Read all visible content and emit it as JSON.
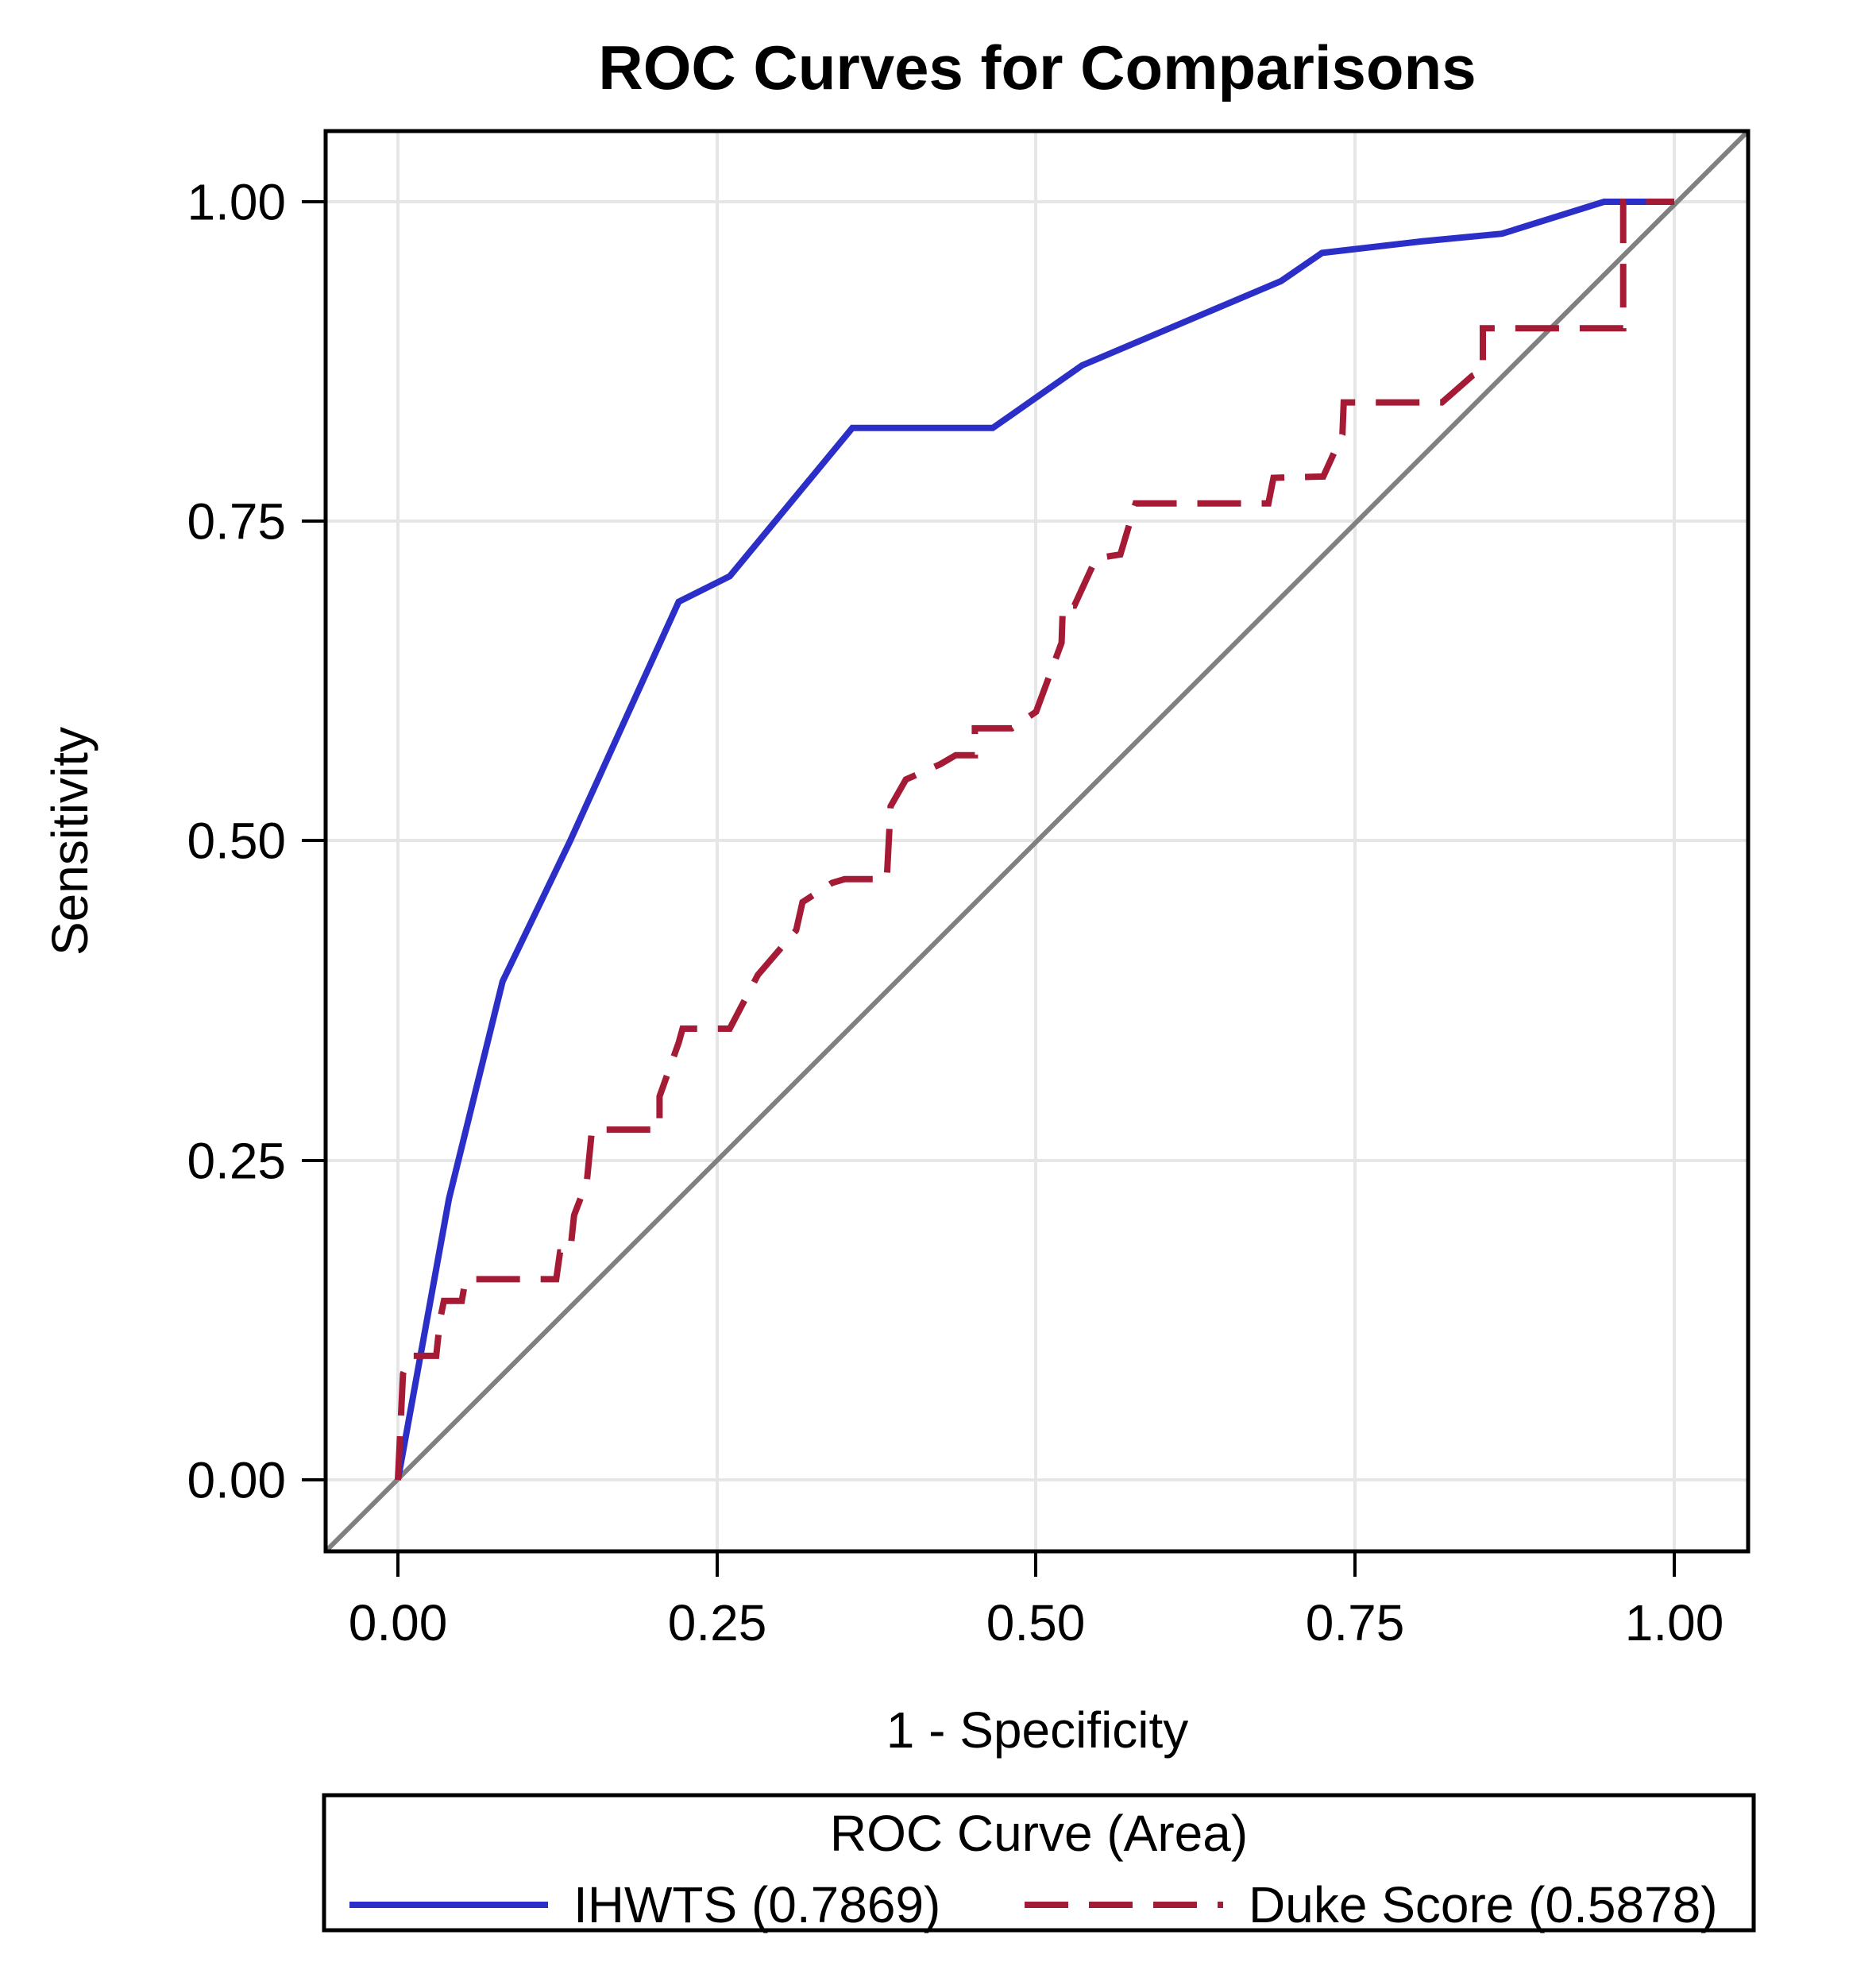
{
  "title": "ROC Curves for Comparisons",
  "axes": {
    "x_label": "1 - Specificity",
    "y_label": "Sensitivity",
    "x_ticks": [
      "0.00",
      "0.25",
      "0.50",
      "0.75",
      "1.00"
    ],
    "y_ticks": [
      "1.00",
      "0.75",
      "0.50",
      "0.25",
      "0.00"
    ]
  },
  "legend": {
    "title": "ROC Curve (Area)",
    "items": [
      {
        "label": "IHWTS  (0.7869)"
      },
      {
        "label": "Duke Score  (0.5878)"
      }
    ]
  },
  "colors": {
    "ihwts_line": "#2B2FC8",
    "duke_line": "#A51B35",
    "reference_line": "#808080",
    "gridline": "#E6E6E6",
    "frame": "#000000"
  },
  "chart_data": {
    "type": "line",
    "title": "ROC Curves for Comparisons",
    "xlabel": "1 - Specificity",
    "ylabel": "Sensitivity",
    "xlim": [
      0,
      1
    ],
    "ylim": [
      0,
      1
    ],
    "x_ticks": [
      0.0,
      0.25,
      0.5,
      0.75,
      1.0
    ],
    "y_ticks": [
      0.0,
      0.25,
      0.5,
      0.75,
      1.0
    ],
    "grid": true,
    "legend_position": "bottom",
    "legend_title": "ROC Curve (Area)",
    "reference_line": {
      "type": "diagonal",
      "from": [
        0,
        0
      ],
      "to": [
        1,
        1
      ],
      "color": "#808080",
      "style": "solid"
    },
    "series": [
      {
        "name": "IHWTS",
        "area": 0.7869,
        "color": "#2B2FC8",
        "style": "solid",
        "points": [
          [
            0.0,
            0.0
          ],
          [
            0.04,
            0.22
          ],
          [
            0.082,
            0.39
          ],
          [
            0.135,
            0.5
          ],
          [
            0.22,
            0.687
          ],
          [
            0.26,
            0.707
          ],
          [
            0.356,
            0.823
          ],
          [
            0.466,
            0.823
          ],
          [
            0.536,
            0.872
          ],
          [
            0.692,
            0.938
          ],
          [
            0.724,
            0.96
          ],
          [
            0.802,
            0.969
          ],
          [
            0.865,
            0.975
          ],
          [
            0.945,
            1.0
          ],
          [
            1.0,
            1.0
          ]
        ]
      },
      {
        "name": "Duke Score",
        "area": 0.5878,
        "color": "#A51B35",
        "style": "dashed",
        "points": [
          [
            0.0,
            0.0
          ],
          [
            0.004,
            0.083
          ],
          [
            0.01,
            0.097
          ],
          [
            0.03,
            0.097
          ],
          [
            0.033,
            0.125
          ],
          [
            0.036,
            0.14
          ],
          [
            0.05,
            0.14
          ],
          [
            0.053,
            0.157
          ],
          [
            0.124,
            0.157
          ],
          [
            0.127,
            0.178
          ],
          [
            0.135,
            0.178
          ],
          [
            0.138,
            0.207
          ],
          [
            0.148,
            0.233
          ],
          [
            0.152,
            0.274
          ],
          [
            0.205,
            0.274
          ],
          [
            0.205,
            0.3
          ],
          [
            0.22,
            0.342
          ],
          [
            0.223,
            0.353
          ],
          [
            0.26,
            0.353
          ],
          [
            0.282,
            0.395
          ],
          [
            0.312,
            0.43
          ],
          [
            0.317,
            0.452
          ],
          [
            0.34,
            0.467
          ],
          [
            0.35,
            0.47
          ],
          [
            0.383,
            0.47
          ],
          [
            0.386,
            0.527
          ],
          [
            0.398,
            0.548
          ],
          [
            0.425,
            0.56
          ],
          [
            0.437,
            0.567
          ],
          [
            0.452,
            0.567
          ],
          [
            0.452,
            0.588
          ],
          [
            0.481,
            0.588
          ],
          [
            0.5,
            0.601
          ],
          [
            0.52,
            0.655
          ],
          [
            0.521,
            0.684
          ],
          [
            0.53,
            0.684
          ],
          [
            0.547,
            0.721
          ],
          [
            0.566,
            0.724
          ],
          [
            0.578,
            0.764
          ],
          [
            0.682,
            0.764
          ],
          [
            0.686,
            0.784
          ],
          [
            0.725,
            0.785
          ],
          [
            0.74,
            0.818
          ],
          [
            0.741,
            0.843
          ],
          [
            0.818,
            0.843
          ],
          [
            0.842,
            0.864
          ],
          [
            0.85,
            0.868
          ],
          [
            0.85,
            0.901
          ],
          [
            0.96,
            0.901
          ],
          [
            0.96,
            1.0
          ],
          [
            1.0,
            1.0
          ]
        ]
      }
    ]
  }
}
